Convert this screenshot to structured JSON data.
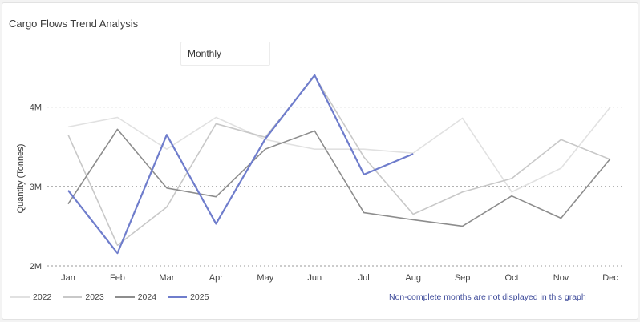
{
  "title": "Cargo Flows Trend Analysis",
  "filter": {
    "label": "Monthly"
  },
  "note": "Non-complete months are not displayed in this graph",
  "chart_data": {
    "type": "line",
    "ylabel": "Quantity (Tonnes)",
    "categories": [
      "Jan",
      "Feb",
      "Mar",
      "Apr",
      "May",
      "Jun",
      "Jul",
      "Aug",
      "Sep",
      "Oct",
      "Nov",
      "Dec"
    ],
    "ylim": [
      2000000,
      4500000
    ],
    "yticks": [
      {
        "value": 2000000,
        "label": "2M"
      },
      {
        "value": 3000000,
        "label": "3M"
      },
      {
        "value": 4000000,
        "label": "4M"
      }
    ],
    "grid": true,
    "legend_position": "bottom-left",
    "series": [
      {
        "name": "2022",
        "color": "#e1e1e1",
        "values": [
          3750000,
          3870000,
          3470000,
          3870000,
          3590000,
          3470000,
          3470000,
          3420000,
          3860000,
          2930000,
          3230000,
          4000000
        ]
      },
      {
        "name": "2023",
        "color": "#c8c8c8",
        "values": [
          3650000,
          2260000,
          2740000,
          3790000,
          3620000,
          4390000,
          3370000,
          2650000,
          2930000,
          3100000,
          3590000,
          3340000
        ]
      },
      {
        "name": "2024",
        "color": "#8d8d8d",
        "values": [
          2780000,
          3720000,
          2980000,
          2870000,
          3470000,
          3700000,
          2670000,
          2580000,
          2500000,
          2880000,
          2600000,
          3350000
        ]
      },
      {
        "name": "2025",
        "color": "#6f7dcc",
        "values": [
          2950000,
          2160000,
          3650000,
          2530000,
          3600000,
          4400000,
          3150000,
          3410000,
          null,
          null,
          null,
          null
        ]
      }
    ]
  }
}
